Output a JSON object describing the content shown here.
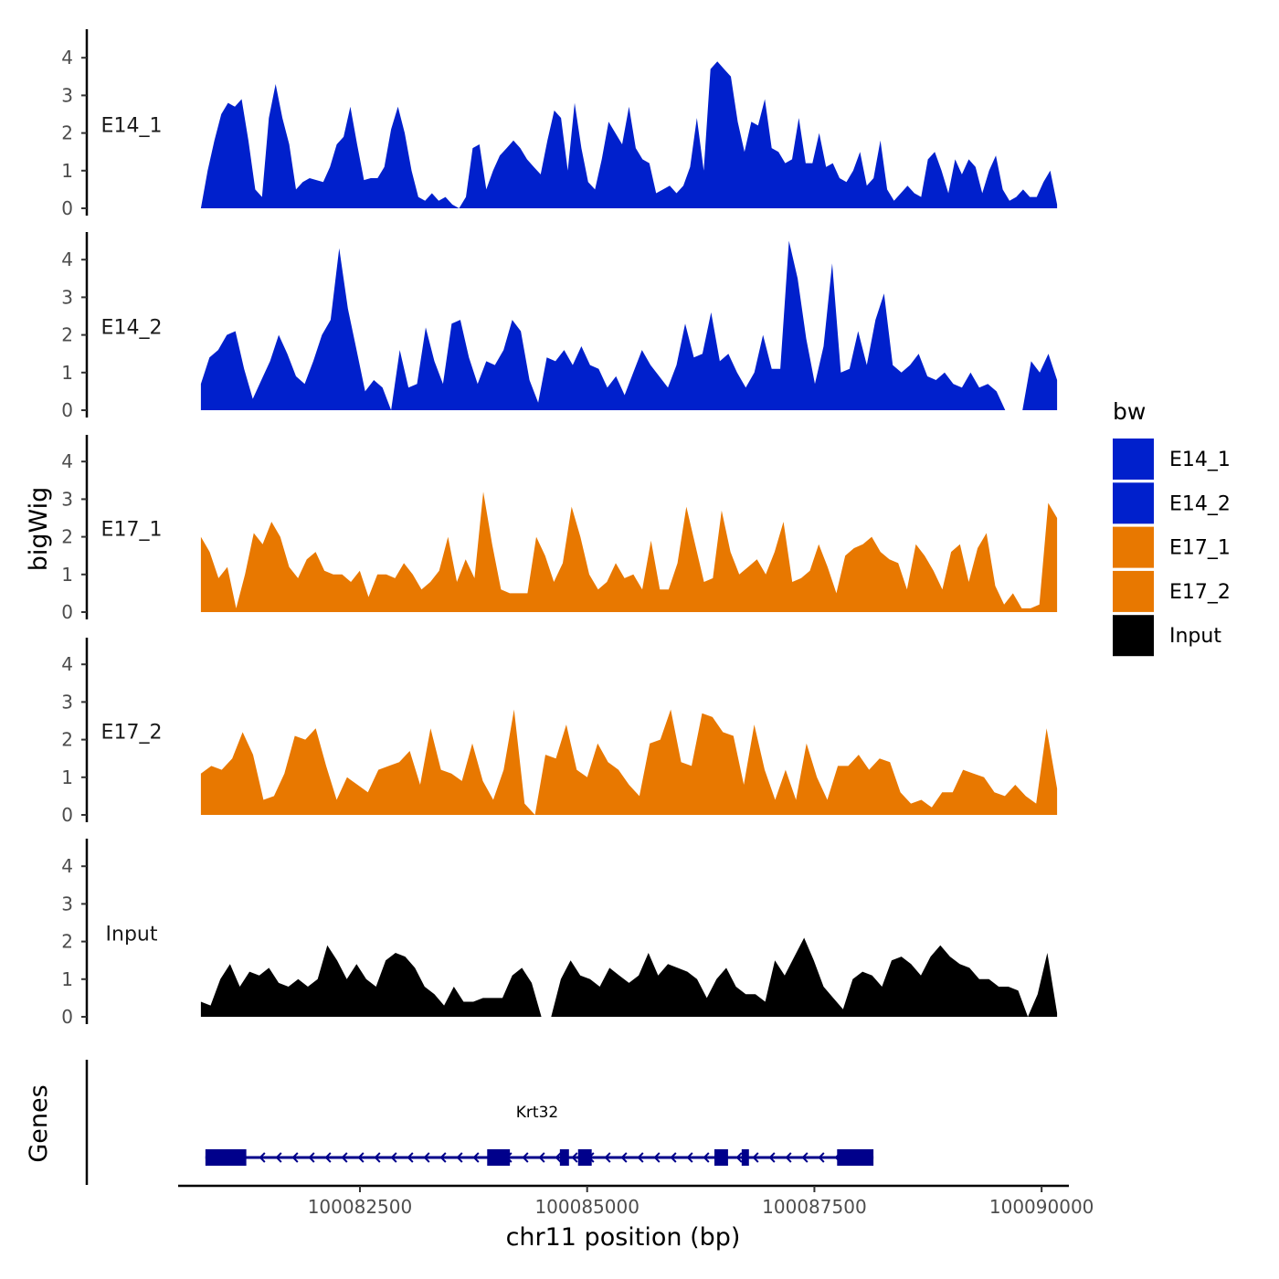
{
  "chart_data": {
    "type": "area",
    "region": "chr11",
    "xlim": [
      100080500,
      100090300
    ],
    "x_start": 100080750,
    "x_end": 100090170,
    "xlabel": "chr11 position (bp)",
    "ylabel": "bigWig",
    "ylim": [
      0,
      4.7
    ],
    "yticks": [
      0,
      1,
      2,
      3,
      4
    ],
    "xticks": [
      100082500,
      100085000,
      100087500,
      100090000
    ],
    "legend_title": "bw",
    "series": [
      {
        "name": "E14_1",
        "color": "#0020CC",
        "values": [
          0,
          1.0,
          1.8,
          2.5,
          2.8,
          2.7,
          2.9,
          1.8,
          0.5,
          0.3,
          2.4,
          3.3,
          2.4,
          1.7,
          0.5,
          0.7,
          0.8,
          0.75,
          0.7,
          1.1,
          1.7,
          1.9,
          2.7,
          1.7,
          0.75,
          0.8,
          0.8,
          1.1,
          2.1,
          2.7,
          2.0,
          1.0,
          0.3,
          0.2,
          0.4,
          0.2,
          0.3,
          0.1,
          0.0,
          0.3,
          1.6,
          1.7,
          0.5,
          1.0,
          1.4,
          1.6,
          1.8,
          1.6,
          1.3,
          1.1,
          0.9,
          1.8,
          2.6,
          2.4,
          1.0,
          2.8,
          1.6,
          0.7,
          0.5,
          1.3,
          2.3,
          2.0,
          1.7,
          2.7,
          1.6,
          1.3,
          1.2,
          0.4,
          0.5,
          0.6,
          0.4,
          0.6,
          1.1,
          2.4,
          1.0,
          3.7,
          3.9,
          3.7,
          3.5,
          2.3,
          1.5,
          2.3,
          2.2,
          2.9,
          1.6,
          1.5,
          1.2,
          1.3,
          2.4,
          1.2,
          1.2,
          2.0,
          1.1,
          1.2,
          0.8,
          0.7,
          1.0,
          1.5,
          0.6,
          0.8,
          1.8,
          0.5,
          0.2,
          0.4,
          0.6,
          0.4,
          0.3,
          1.3,
          1.5,
          1.0,
          0.4,
          1.3,
          0.9,
          1.3,
          1.1,
          0.4,
          1.0,
          1.4,
          0.5,
          0.2,
          0.3,
          0.5,
          0.3,
          0.3,
          0.7,
          1.0,
          0.1
        ]
      },
      {
        "name": "E14_2",
        "color": "#0020CC",
        "values": [
          0.7,
          1.4,
          1.6,
          2.0,
          2.1,
          1.1,
          0.3,
          0.8,
          1.3,
          2.0,
          1.5,
          0.9,
          0.7,
          1.3,
          2.0,
          2.4,
          4.3,
          2.7,
          1.6,
          0.5,
          0.8,
          0.6,
          0.0,
          1.6,
          0.6,
          0.7,
          2.2,
          1.3,
          0.7,
          2.3,
          2.4,
          1.4,
          0.7,
          1.3,
          1.2,
          1.6,
          2.4,
          2.1,
          0.8,
          0.2,
          1.4,
          1.3,
          1.6,
          1.2,
          1.7,
          1.2,
          1.1,
          0.6,
          0.9,
          0.4,
          1.0,
          1.6,
          1.2,
          0.9,
          0.6,
          1.2,
          2.3,
          1.4,
          1.5,
          2.6,
          1.3,
          1.5,
          1.0,
          0.6,
          1.0,
          2.0,
          1.1,
          1.1,
          4.5,
          3.5,
          1.9,
          0.7,
          1.7,
          3.9,
          1.0,
          1.1,
          2.1,
          1.2,
          2.4,
          3.1,
          1.2,
          1.0,
          1.2,
          1.5,
          0.9,
          0.8,
          1.0,
          0.7,
          0.6,
          1.0,
          0.6,
          0.7,
          0.5,
          0.0,
          0.0,
          0.0,
          1.3,
          1.0,
          1.5,
          0.8
        ]
      },
      {
        "name": "E17_1",
        "color": "#E87800",
        "values": [
          2.0,
          1.6,
          0.9,
          1.2,
          0.1,
          1.0,
          2.1,
          1.8,
          2.4,
          2.0,
          1.2,
          0.9,
          1.4,
          1.6,
          1.1,
          1.0,
          1.0,
          0.8,
          1.1,
          0.4,
          1.0,
          1.0,
          0.9,
          1.3,
          1.0,
          0.6,
          0.8,
          1.1,
          2.0,
          0.8,
          1.4,
          0.9,
          3.2,
          1.8,
          0.6,
          0.5,
          0.5,
          0.5,
          2.0,
          1.5,
          0.8,
          1.3,
          2.8,
          2.0,
          1.0,
          0.6,
          0.8,
          1.3,
          0.9,
          1.0,
          0.6,
          1.9,
          0.6,
          0.6,
          1.3,
          2.8,
          1.8,
          0.8,
          0.9,
          2.7,
          1.6,
          1.0,
          1.2,
          1.4,
          1.0,
          1.6,
          2.4,
          0.8,
          0.9,
          1.1,
          1.8,
          1.2,
          0.5,
          1.5,
          1.7,
          1.8,
          2.0,
          1.6,
          1.4,
          1.3,
          0.6,
          1.8,
          1.5,
          1.1,
          0.6,
          1.6,
          1.8,
          0.8,
          1.7,
          2.1,
          0.7,
          0.2,
          0.5,
          0.1,
          0.1,
          0.2,
          2.9,
          2.5
        ]
      },
      {
        "name": "E17_2",
        "color": "#E87800",
        "values": [
          1.1,
          1.3,
          1.2,
          1.5,
          2.2,
          1.6,
          0.4,
          0.5,
          1.1,
          2.1,
          2.0,
          2.3,
          1.3,
          0.4,
          1.0,
          0.8,
          0.6,
          1.2,
          1.3,
          1.4,
          1.7,
          0.8,
          2.3,
          1.2,
          1.1,
          0.9,
          1.9,
          0.9,
          0.4,
          1.2,
          2.8,
          0.3,
          0.0,
          1.6,
          1.5,
          2.4,
          1.2,
          1.0,
          1.9,
          1.4,
          1.2,
          0.8,
          0.5,
          1.9,
          2.0,
          2.8,
          1.4,
          1.3,
          2.7,
          2.6,
          2.2,
          2.1,
          0.8,
          2.4,
          1.2,
          0.4,
          1.2,
          0.4,
          1.9,
          1.0,
          0.4,
          1.3,
          1.3,
          1.6,
          1.2,
          1.5,
          1.4,
          0.6,
          0.3,
          0.4,
          0.2,
          0.6,
          0.6,
          1.2,
          1.1,
          1.0,
          0.6,
          0.5,
          0.8,
          0.5,
          0.3,
          2.3,
          0.7
        ]
      },
      {
        "name": "Input",
        "color": "#000000",
        "values": [
          0.4,
          0.3,
          1.0,
          1.4,
          0.8,
          1.2,
          1.1,
          1.3,
          0.9,
          0.8,
          1.0,
          0.8,
          1.0,
          1.9,
          1.5,
          1.0,
          1.4,
          1.0,
          0.8,
          1.5,
          1.7,
          1.6,
          1.3,
          0.8,
          0.6,
          0.3,
          0.8,
          0.4,
          0.4,
          0.5,
          0.5,
          0.5,
          1.1,
          1.3,
          0.9,
          0.0,
          0.0,
          1.0,
          1.5,
          1.1,
          1.0,
          0.8,
          1.3,
          1.1,
          0.9,
          1.1,
          1.7,
          1.1,
          1.4,
          1.3,
          1.2,
          1.0,
          0.5,
          1.0,
          1.3,
          0.8,
          0.6,
          0.6,
          0.4,
          1.5,
          1.1,
          1.6,
          2.1,
          1.5,
          0.8,
          0.5,
          0.2,
          1.0,
          1.2,
          1.1,
          0.8,
          1.5,
          1.6,
          1.4,
          1.1,
          1.6,
          1.9,
          1.6,
          1.4,
          1.3,
          1.0,
          1.0,
          0.8,
          0.8,
          0.7,
          0.0,
          0.6,
          1.7,
          0.1
        ]
      }
    ],
    "gene": {
      "name": "Krt32",
      "color": "#00008B",
      "strand": "-",
      "start": 100080800,
      "end": 100088150,
      "exons": [
        [
          100080800,
          100081250
        ],
        [
          100083900,
          100084150
        ],
        [
          100084700,
          100084800
        ],
        [
          100084900,
          100085050
        ],
        [
          100086400,
          100086550
        ],
        [
          100086700,
          100086780
        ],
        [
          100087750,
          100088150
        ]
      ]
    }
  }
}
